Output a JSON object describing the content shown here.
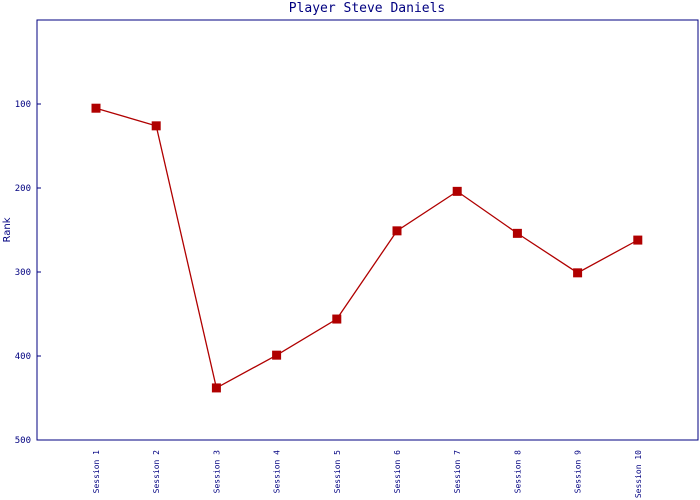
{
  "chart_data": {
    "type": "line",
    "title": "Player Steve Daniels",
    "y_label": "Rank",
    "categories": [
      "Session 1",
      "Session 2",
      "Session 3",
      "Session 4",
      "Session 5",
      "Session 6",
      "Session 7",
      "Session 8",
      "Session 9",
      "Session 10"
    ],
    "series": [
      {
        "name": "Rank",
        "color": "#b00000",
        "values": [
          105,
          126,
          438,
          399,
          356,
          251,
          204,
          254,
          301,
          262
        ]
      }
    ],
    "ylim": [
      0,
      500
    ],
    "yticks": [
      100,
      200,
      300,
      400,
      500
    ],
    "y_reversed": true,
    "legend": false
  }
}
